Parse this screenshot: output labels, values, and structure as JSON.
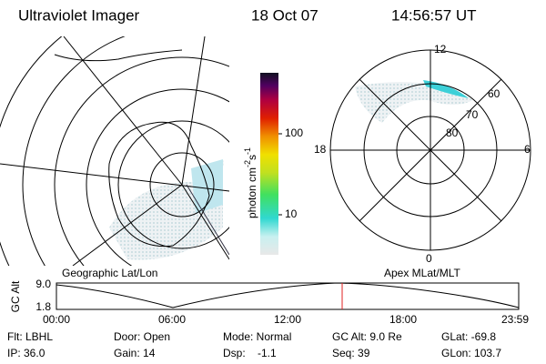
{
  "header": {
    "instrument": "Ultraviolet Imager",
    "date": "18 Oct 07",
    "time": "14:56:57 UT"
  },
  "left_map": {
    "label": "Geographic Lat/Lon"
  },
  "right_map": {
    "label": "Apex MLat/MLT",
    "mlt_labels": [
      "12",
      "18",
      "6",
      "0"
    ],
    "lat_labels": [
      "60",
      "70",
      "80"
    ]
  },
  "colorbar": {
    "label": "photon cm",
    "exp1": "-2",
    "unit2": "s",
    "exp2": "-1",
    "ticks": [
      "100",
      "10"
    ]
  },
  "timeline": {
    "axis_label": "GC Alt",
    "y_labels": [
      "9.0",
      "1.8"
    ],
    "x_labels": [
      "00:00",
      "06:00",
      "12:00",
      "18:00",
      "23:59"
    ]
  },
  "footer": {
    "rows": [
      [
        "Flt: LBHL",
        "Door: Open",
        "Mode: Normal",
        "GC Alt: 9.0 Re",
        "GLat: -69.8"
      ],
      [
        "IP: 36.0",
        "Gain: 14",
        "Dsp:    -1.1",
        "Seq: 39",
        "GLon: 103.7"
      ]
    ]
  }
}
